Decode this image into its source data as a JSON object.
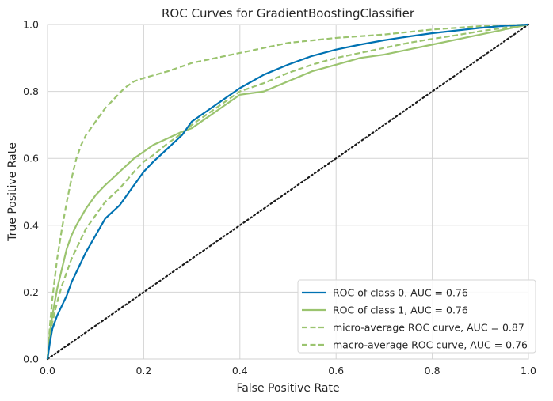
{
  "chart_data": {
    "type": "line",
    "title": "ROC Curves for GradientBoostingClassifier",
    "xlabel": "False Positive Rate",
    "ylabel": "True Positive Rate",
    "xlim": [
      0,
      1
    ],
    "ylim": [
      0,
      1
    ],
    "grid": true,
    "legend_position": "bottom-right",
    "x_ticks": [
      "0.0",
      "0.2",
      "0.4",
      "0.6",
      "0.8",
      "1.0"
    ],
    "y_ticks": [
      "0.0",
      "0.2",
      "0.4",
      "0.6",
      "0.8",
      "1.0"
    ],
    "series": [
      {
        "name": "ROC of class 0, AUC = 0.76",
        "color": "#0072b2",
        "style": "solid",
        "x": [
          0,
          0.005,
          0.01,
          0.02,
          0.03,
          0.04,
          0.05,
          0.06,
          0.07,
          0.08,
          0.1,
          0.12,
          0.15,
          0.18,
          0.2,
          0.22,
          0.25,
          0.28,
          0.3,
          0.33,
          0.36,
          0.4,
          0.45,
          0.5,
          0.55,
          0.6,
          0.65,
          0.7,
          0.75,
          0.8,
          0.85,
          0.9,
          0.95,
          1.0
        ],
        "y": [
          0,
          0.05,
          0.09,
          0.13,
          0.16,
          0.19,
          0.23,
          0.26,
          0.29,
          0.32,
          0.37,
          0.42,
          0.46,
          0.52,
          0.56,
          0.59,
          0.63,
          0.67,
          0.71,
          0.74,
          0.77,
          0.81,
          0.85,
          0.88,
          0.906,
          0.925,
          0.94,
          0.953,
          0.964,
          0.974,
          0.982,
          0.99,
          0.996,
          1.0
        ]
      },
      {
        "name": "ROC of class 1, AUC = 0.76",
        "color": "#9bc46f",
        "style": "solid",
        "x": [
          0,
          0.005,
          0.01,
          0.02,
          0.03,
          0.04,
          0.05,
          0.06,
          0.08,
          0.1,
          0.12,
          0.15,
          0.18,
          0.2,
          0.22,
          0.25,
          0.28,
          0.3,
          0.33,
          0.36,
          0.4,
          0.45,
          0.5,
          0.55,
          0.6,
          0.65,
          0.7,
          0.75,
          0.8,
          0.85,
          0.9,
          0.95,
          1.0
        ],
        "y": [
          0,
          0.08,
          0.13,
          0.21,
          0.27,
          0.33,
          0.37,
          0.4,
          0.45,
          0.49,
          0.52,
          0.56,
          0.6,
          0.62,
          0.64,
          0.66,
          0.68,
          0.69,
          0.72,
          0.75,
          0.79,
          0.8,
          0.83,
          0.86,
          0.88,
          0.9,
          0.91,
          0.925,
          0.94,
          0.955,
          0.97,
          0.985,
          1.0
        ]
      },
      {
        "name": "micro-average ROC curve, AUC = 0.87",
        "color": "#9bc46f",
        "style": "dashed",
        "x": [
          0,
          0.005,
          0.01,
          0.02,
          0.03,
          0.04,
          0.05,
          0.06,
          0.07,
          0.08,
          0.1,
          0.12,
          0.14,
          0.16,
          0.18,
          0.2,
          0.25,
          0.3,
          0.35,
          0.4,
          0.45,
          0.5,
          0.6,
          0.7,
          0.8,
          0.9,
          1.0
        ],
        "y": [
          0,
          0.1,
          0.18,
          0.3,
          0.39,
          0.47,
          0.54,
          0.6,
          0.64,
          0.67,
          0.71,
          0.75,
          0.78,
          0.81,
          0.83,
          0.84,
          0.86,
          0.885,
          0.9,
          0.915,
          0.93,
          0.945,
          0.96,
          0.97,
          0.985,
          0.995,
          1.0
        ]
      },
      {
        "name": "macro-average ROC curve, AUC = 0.76",
        "color": "#9bc46f",
        "style": "dashed",
        "x": [
          0,
          0.005,
          0.01,
          0.02,
          0.03,
          0.04,
          0.05,
          0.06,
          0.08,
          0.1,
          0.12,
          0.15,
          0.18,
          0.2,
          0.22,
          0.25,
          0.28,
          0.3,
          0.33,
          0.36,
          0.4,
          0.45,
          0.5,
          0.55,
          0.6,
          0.65,
          0.7,
          0.75,
          0.8,
          0.85,
          0.9,
          0.95,
          1.0
        ],
        "y": [
          0,
          0.07,
          0.11,
          0.17,
          0.22,
          0.26,
          0.3,
          0.33,
          0.39,
          0.43,
          0.47,
          0.51,
          0.56,
          0.59,
          0.61,
          0.645,
          0.675,
          0.7,
          0.73,
          0.76,
          0.8,
          0.825,
          0.855,
          0.88,
          0.9,
          0.915,
          0.93,
          0.945,
          0.957,
          0.968,
          0.98,
          0.99,
          1.0
        ]
      },
      {
        "name": "",
        "color": "#1a1a1a",
        "style": "dotted",
        "x": [
          0,
          1
        ],
        "y": [
          0,
          1
        ]
      }
    ]
  }
}
